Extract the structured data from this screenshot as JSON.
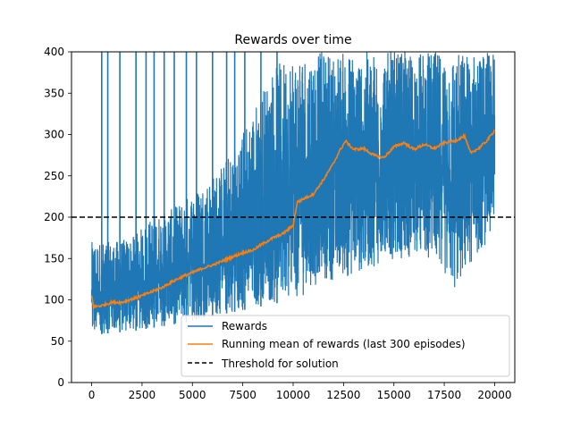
{
  "chart_data": {
    "type": "line",
    "title": "Rewards over time",
    "xlabel": "",
    "ylabel": "",
    "xlim": [
      -1000,
      21000
    ],
    "ylim": [
      0,
      400
    ],
    "x_ticks": [
      0,
      2500,
      5000,
      7500,
      10000,
      12500,
      15000,
      17500,
      20000
    ],
    "y_ticks": [
      0,
      50,
      100,
      150,
      200,
      250,
      300,
      350,
      400
    ],
    "grid": false,
    "legend_position": "lower-right",
    "series": [
      {
        "name": "Rewards",
        "color": "#1f77b4",
        "style": "noisy-band",
        "x": [
          0,
          1000,
          2000,
          3000,
          4000,
          5000,
          6000,
          7000,
          8000,
          9000,
          10000,
          11000,
          12000,
          13000,
          14000,
          15000,
          16000,
          17000,
          18000,
          19000,
          20000
        ],
        "low": [
          57,
          60,
          62,
          66,
          70,
          75,
          80,
          85,
          90,
          95,
          100,
          110,
          120,
          130,
          140,
          150,
          150,
          150,
          110,
          150,
          180
        ],
        "high": [
          170,
          170,
          175,
          200,
          210,
          230,
          250,
          280,
          330,
          380,
          400,
          400,
          400,
          400,
          400,
          400,
          400,
          400,
          400,
          400,
          400
        ],
        "spikes_to_max": [
          500,
          800,
          1400,
          2200,
          2700,
          3100,
          3600,
          4100,
          4700,
          5200,
          6000,
          6700,
          7100,
          7600,
          8400,
          9200
        ]
      },
      {
        "name": "Running mean of rewards (last 300 episodes)",
        "color": "#ff7f0e",
        "x": [
          0,
          100,
          200,
          500,
          1000,
          1500,
          2000,
          2500,
          3000,
          3500,
          4000,
          4500,
          5000,
          5500,
          6000,
          6500,
          7000,
          7500,
          8000,
          8500,
          9000,
          9500,
          10000,
          10200,
          10500,
          11000,
          11500,
          12000,
          12300,
          12600,
          12800,
          13000,
          13500,
          14000,
          14500,
          15000,
          15500,
          16000,
          16500,
          17000,
          17500,
          18000,
          18500,
          18800,
          19200,
          19600,
          20000
        ],
        "y": [
          105,
          92,
          92,
          93,
          97,
          97,
          101,
          105,
          110,
          115,
          122,
          128,
          133,
          138,
          142,
          147,
          152,
          157,
          160,
          168,
          175,
          180,
          190,
          218,
          222,
          228,
          245,
          265,
          280,
          292,
          287,
          282,
          283,
          275,
          272,
          285,
          290,
          282,
          288,
          283,
          290,
          292,
          298,
          278,
          283,
          292,
          305
        ]
      },
      {
        "name": "Threshold for solution",
        "color": "#000000",
        "style": "dashed",
        "x": [
          -1000,
          21000
        ],
        "y": [
          200,
          200
        ]
      }
    ]
  }
}
